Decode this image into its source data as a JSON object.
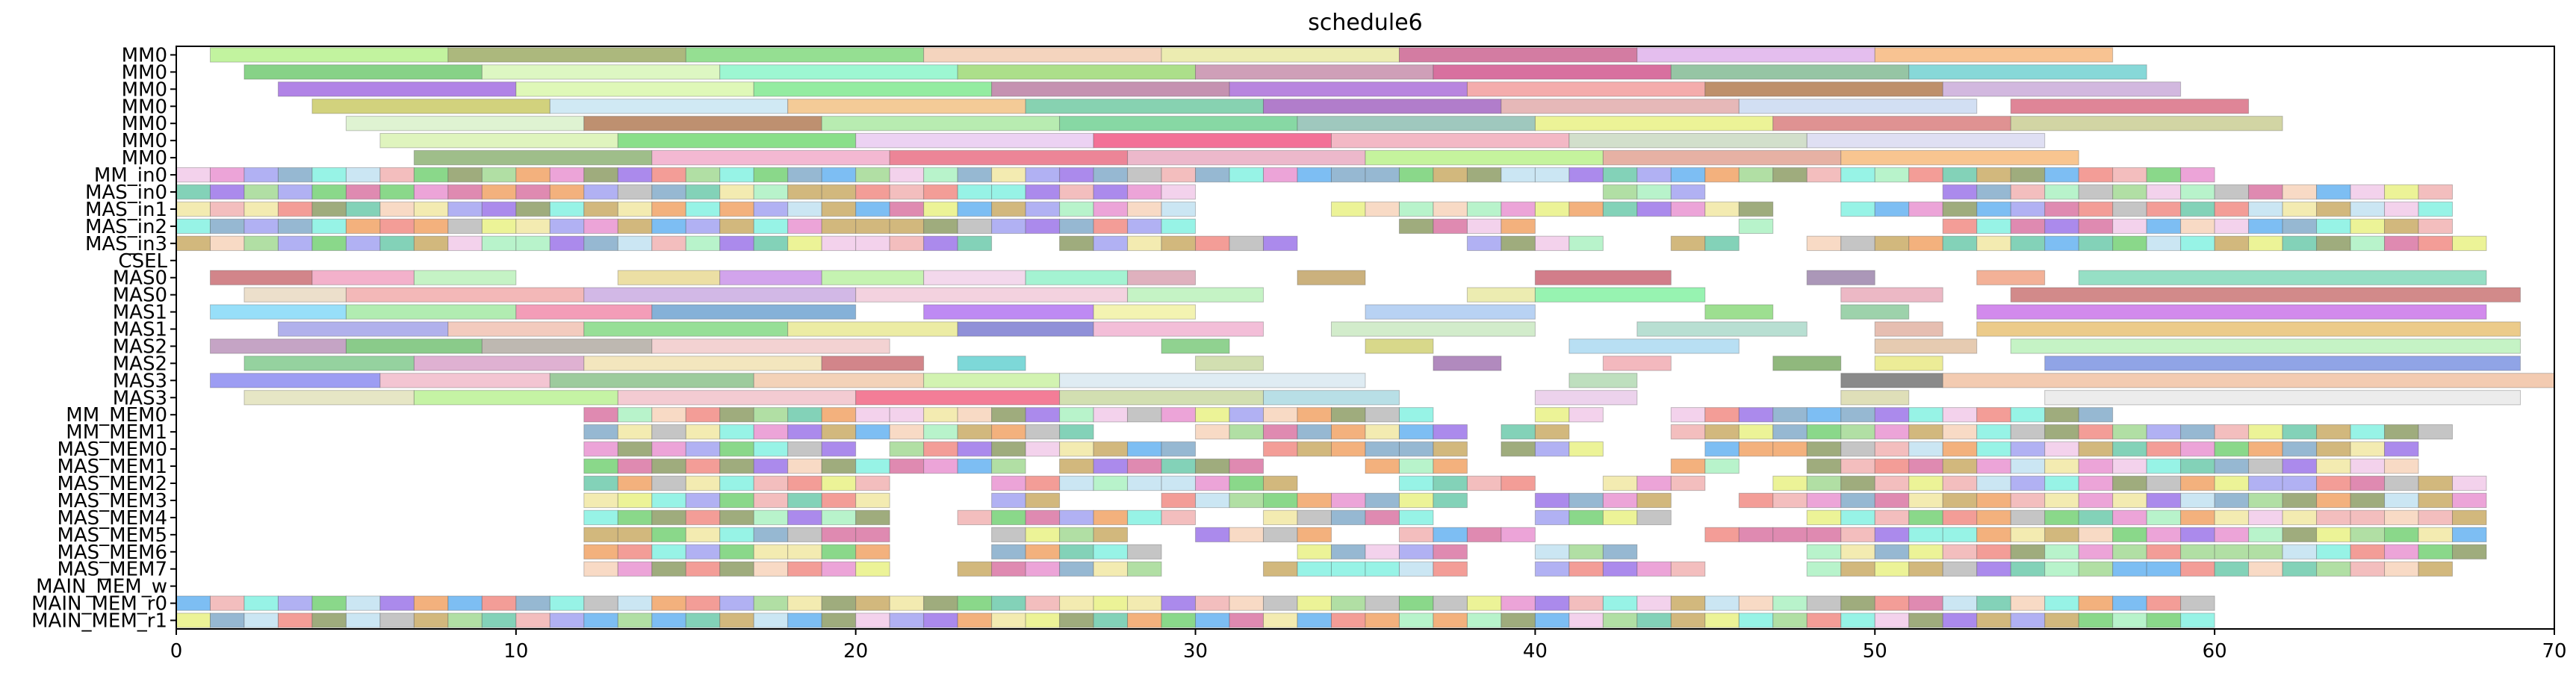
{
  "chart_data": {
    "type": "gantt",
    "title": "schedule6",
    "xlabel": "",
    "ylabel": "",
    "xlim": [
      0,
      70
    ],
    "x_ticks": [
      0,
      10,
      20,
      30,
      40,
      50,
      60,
      70
    ],
    "grid": false,
    "legend": "none",
    "rows": [
      "MM0",
      "MM0",
      "MM0",
      "MM0",
      "MM0",
      "MM0",
      "MM0",
      "MM_in0",
      "MAS_in0",
      "MAS_in1",
      "MAS_in2",
      "MAS_in3",
      "CSEL",
      "MAS0",
      "MAS0",
      "MAS1",
      "MAS1",
      "MAS2",
      "MAS2",
      "MAS3",
      "MAS3",
      "MM_MEM0",
      "MM_MEM1",
      "MAS_MEM0",
      "MAS_MEM1",
      "MAS_MEM2",
      "MAS_MEM3",
      "MAS_MEM4",
      "MAS_MEM5",
      "MAS_MEM6",
      "MAS_MEM7",
      "MAIN_MEM_w",
      "MAIN_MEM_r0",
      "MAIN_MEM_r1"
    ],
    "tasks": [
      {
        "row": 0,
        "start": 1,
        "end": 8,
        "color": "#b5f08a"
      },
      {
        "row": 0,
        "start": 8,
        "end": 15,
        "color": "#9aa860"
      },
      {
        "row": 0,
        "start": 15,
        "end": 22,
        "color": "#7ed87a"
      },
      {
        "row": 0,
        "start": 22,
        "end": 29,
        "color": "#f2cbb0"
      },
      {
        "row": 0,
        "start": 29,
        "end": 36,
        "color": "#e8e8a0"
      },
      {
        "row": 0,
        "start": 36,
        "end": 43,
        "color": "#c95f8e"
      },
      {
        "row": 0,
        "start": 43,
        "end": 50,
        "color": "#deb0ea"
      },
      {
        "row": 0,
        "start": 50,
        "end": 57,
        "color": "#f7b67a"
      },
      {
        "row": 1,
        "start": 2,
        "end": 9,
        "color": "#6cc86c"
      },
      {
        "row": 1,
        "start": 9,
        "end": 16,
        "color": "#d6f5b5"
      },
      {
        "row": 1,
        "start": 16,
        "end": 23,
        "color": "#88f5c8"
      },
      {
        "row": 1,
        "start": 23,
        "end": 30,
        "color": "#9ad870"
      },
      {
        "row": 1,
        "start": 30,
        "end": 37,
        "color": "#c48aa8"
      },
      {
        "row": 1,
        "start": 37,
        "end": 44,
        "color": "#d0508a"
      },
      {
        "row": 1,
        "start": 44,
        "end": 51,
        "color": "#7fb890"
      },
      {
        "row": 1,
        "start": 51,
        "end": 58,
        "color": "#6ccfd0"
      },
      {
        "row": 2,
        "start": 3,
        "end": 10,
        "color": "#a068e0"
      },
      {
        "row": 2,
        "start": 10,
        "end": 17,
        "color": "#d8f7a8"
      },
      {
        "row": 2,
        "start": 17,
        "end": 24,
        "color": "#7de88c"
      },
      {
        "row": 2,
        "start": 24,
        "end": 31,
        "color": "#b87aa0"
      },
      {
        "row": 2,
        "start": 31,
        "end": 38,
        "color": "#a86ad8"
      },
      {
        "row": 2,
        "start": 38,
        "end": 45,
        "color": "#f29a9a"
      },
      {
        "row": 2,
        "start": 45,
        "end": 52,
        "color": "#b0784a"
      },
      {
        "row": 2,
        "start": 52,
        "end": 59,
        "color": "#c8a8d8"
      },
      {
        "row": 3,
        "start": 4,
        "end": 11,
        "color": "#c8c860"
      },
      {
        "row": 3,
        "start": 11,
        "end": 18,
        "color": "#c6e4f2"
      },
      {
        "row": 3,
        "start": 18,
        "end": 25,
        "color": "#f2c080"
      },
      {
        "row": 3,
        "start": 25,
        "end": 32,
        "color": "#6cc8a0"
      },
      {
        "row": 3,
        "start": 32,
        "end": 39,
        "color": "#a060c0"
      },
      {
        "row": 3,
        "start": 39,
        "end": 46,
        "color": "#e0a8a8"
      },
      {
        "row": 3,
        "start": 46,
        "end": 53,
        "color": "#c8d8f0"
      },
      {
        "row": 3,
        "start": 54,
        "end": 61,
        "color": "#d86a80"
      },
      {
        "row": 4,
        "start": 5,
        "end": 12,
        "color": "#d8f0c8"
      },
      {
        "row": 4,
        "start": 12,
        "end": 19,
        "color": "#b07850"
      },
      {
        "row": 4,
        "start": 19,
        "end": 26,
        "color": "#a8e8a0"
      },
      {
        "row": 4,
        "start": 26,
        "end": 33,
        "color": "#6cd090"
      },
      {
        "row": 4,
        "start": 33,
        "end": 40,
        "color": "#8abcb0"
      },
      {
        "row": 4,
        "start": 40,
        "end": 47,
        "color": "#e8f080"
      },
      {
        "row": 4,
        "start": 47,
        "end": 54,
        "color": "#d87a7a"
      },
      {
        "row": 4,
        "start": 54,
        "end": 62,
        "color": "#c8cc90"
      },
      {
        "row": 5,
        "start": 6,
        "end": 13,
        "color": "#d8f2b0"
      },
      {
        "row": 5,
        "start": 13,
        "end": 20,
        "color": "#70d870"
      },
      {
        "row": 5,
        "start": 20,
        "end": 27,
        "color": "#e8c8f0"
      },
      {
        "row": 5,
        "start": 27,
        "end": 34,
        "color": "#f05080"
      },
      {
        "row": 5,
        "start": 34,
        "end": 41,
        "color": "#f0a8b8"
      },
      {
        "row": 5,
        "start": 41,
        "end": 48,
        "color": "#c8d8c0"
      },
      {
        "row": 5,
        "start": 48,
        "end": 55,
        "color": "#d8d8f0"
      },
      {
        "row": 6,
        "start": 7,
        "end": 14,
        "color": "#8ab070"
      },
      {
        "row": 6,
        "start": 14,
        "end": 21,
        "color": "#f0a8c8"
      },
      {
        "row": 6,
        "start": 21,
        "end": 28,
        "color": "#e86a80"
      },
      {
        "row": 6,
        "start": 28,
        "end": 35,
        "color": "#e8a8c0"
      },
      {
        "row": 6,
        "start": 35,
        "end": 42,
        "color": "#b8f088"
      },
      {
        "row": 6,
        "start": 42,
        "end": 49,
        "color": "#e0a090"
      },
      {
        "row": 6,
        "start": 49,
        "end": 56,
        "color": "#f7b878"
      },
      {
        "row": 7,
        "start": 0,
        "end": 60,
        "stripe": true
      },
      {
        "row": 8,
        "start": 0,
        "end": 67,
        "stripe": true,
        "gaps": [
          [
            30,
            42
          ],
          [
            45,
            52
          ]
        ]
      },
      {
        "row": 9,
        "start": 0,
        "end": 67,
        "stripe": true,
        "gaps": [
          [
            30,
            34
          ],
          [
            47,
            49
          ]
        ]
      },
      {
        "row": 10,
        "start": 0,
        "end": 67,
        "stripe": true,
        "gaps": [
          [
            30,
            36
          ],
          [
            40,
            46
          ],
          [
            47,
            52
          ]
        ]
      },
      {
        "row": 11,
        "start": 0,
        "end": 68,
        "stripe": true,
        "gaps": [
          [
            24,
            26
          ],
          [
            33,
            38
          ],
          [
            42,
            44
          ],
          [
            46,
            48
          ]
        ]
      },
      {
        "row": 13,
        "start": 1,
        "end": 4,
        "color": "#c86a70"
      },
      {
        "row": 13,
        "start": 4,
        "end": 7,
        "color": "#f0a0c0"
      },
      {
        "row": 13,
        "start": 7,
        "end": 10,
        "color": "#b8f0b8"
      },
      {
        "row": 13,
        "start": 13,
        "end": 16,
        "color": "#e8d890"
      },
      {
        "row": 13,
        "start": 16,
        "end": 19,
        "color": "#c890e8"
      },
      {
        "row": 13,
        "start": 19,
        "end": 22,
        "color": "#b8f0a0"
      },
      {
        "row": 13,
        "start": 22,
        "end": 25,
        "color": "#f0d0e8"
      },
      {
        "row": 13,
        "start": 25,
        "end": 28,
        "color": "#90f0c8"
      },
      {
        "row": 13,
        "start": 28,
        "end": 30,
        "color": "#d8a0b0"
      },
      {
        "row": 13,
        "start": 33,
        "end": 35,
        "color": "#c0a060"
      },
      {
        "row": 13,
        "start": 40,
        "end": 44,
        "color": "#c86070"
      },
      {
        "row": 13,
        "start": 48,
        "end": 50,
        "color": "#9880a8"
      },
      {
        "row": 13,
        "start": 53,
        "end": 55,
        "color": "#f0a080"
      },
      {
        "row": 13,
        "start": 56,
        "end": 68,
        "color": "#7fd8b8"
      },
      {
        "row": 14,
        "start": 2,
        "end": 5,
        "color": "#e8d8c0"
      },
      {
        "row": 14,
        "start": 5,
        "end": 12,
        "color": "#f0a8a8"
      },
      {
        "row": 14,
        "start": 12,
        "end": 20,
        "color": "#c8a8e0"
      },
      {
        "row": 14,
        "start": 20,
        "end": 28,
        "color": "#f0c8d8"
      },
      {
        "row": 14,
        "start": 28,
        "end": 32,
        "color": "#b8f0b8"
      },
      {
        "row": 14,
        "start": 38,
        "end": 40,
        "color": "#e8e8a0"
      },
      {
        "row": 14,
        "start": 40,
        "end": 45,
        "color": "#80f0a0"
      },
      {
        "row": 14,
        "start": 49,
        "end": 52,
        "color": "#e8a8b8"
      },
      {
        "row": 14,
        "start": 54,
        "end": 69,
        "color": "#c87070"
      },
      {
        "row": 15,
        "start": 1,
        "end": 5,
        "color": "#80d8f8"
      },
      {
        "row": 15,
        "start": 5,
        "end": 10,
        "color": "#a0e8a0"
      },
      {
        "row": 15,
        "start": 10,
        "end": 14,
        "color": "#f088a8"
      },
      {
        "row": 15,
        "start": 14,
        "end": 20,
        "color": "#6aa0d0"
      },
      {
        "row": 15,
        "start": 22,
        "end": 27,
        "color": "#b070f0"
      },
      {
        "row": 15,
        "start": 27,
        "end": 30,
        "color": "#f0f0a0"
      },
      {
        "row": 15,
        "start": 35,
        "end": 40,
        "color": "#a8c8f0"
      },
      {
        "row": 15,
        "start": 45,
        "end": 47,
        "color": "#88d878"
      },
      {
        "row": 15,
        "start": 49,
        "end": 51,
        "color": "#88c898"
      },
      {
        "row": 15,
        "start": 53,
        "end": 68,
        "color": "#c870e8"
      },
      {
        "row": 16,
        "start": 3,
        "end": 8,
        "color": "#a0a0e8"
      },
      {
        "row": 16,
        "start": 8,
        "end": 12,
        "color": "#f0c0b0"
      },
      {
        "row": 16,
        "start": 12,
        "end": 18,
        "color": "#80d880"
      },
      {
        "row": 16,
        "start": 18,
        "end": 23,
        "color": "#e8e890"
      },
      {
        "row": 16,
        "start": 23,
        "end": 27,
        "color": "#7878d0"
      },
      {
        "row": 16,
        "start": 27,
        "end": 32,
        "color": "#f0b0d0"
      },
      {
        "row": 16,
        "start": 34,
        "end": 40,
        "color": "#c8e8c0"
      },
      {
        "row": 16,
        "start": 43,
        "end": 48,
        "color": "#a8d8c8"
      },
      {
        "row": 16,
        "start": 50,
        "end": 52,
        "color": "#e0b0a0"
      },
      {
        "row": 16,
        "start": 53,
        "end": 69,
        "color": "#e8c070"
      },
      {
        "row": 17,
        "start": 1,
        "end": 5,
        "color": "#b890b8"
      },
      {
        "row": 17,
        "start": 5,
        "end": 9,
        "color": "#70c070"
      },
      {
        "row": 17,
        "start": 9,
        "end": 14,
        "color": "#b0a8a0"
      },
      {
        "row": 17,
        "start": 14,
        "end": 21,
        "color": "#f0c8c8"
      },
      {
        "row": 17,
        "start": 29,
        "end": 31,
        "color": "#78c878"
      },
      {
        "row": 17,
        "start": 35,
        "end": 37,
        "color": "#d0d070"
      },
      {
        "row": 17,
        "start": 41,
        "end": 46,
        "color": "#a8d8f0"
      },
      {
        "row": 17,
        "start": 50,
        "end": 53,
        "color": "#e0c0a0"
      },
      {
        "row": 17,
        "start": 54,
        "end": 69,
        "color": "#b8f0b8"
      },
      {
        "row": 18,
        "start": 2,
        "end": 7,
        "color": "#7ec88a"
      },
      {
        "row": 18,
        "start": 7,
        "end": 12,
        "color": "#d8a0c8"
      },
      {
        "row": 18,
        "start": 12,
        "end": 19,
        "color": "#f0e0b0"
      },
      {
        "row": 18,
        "start": 19,
        "end": 22,
        "color": "#c86a70"
      },
      {
        "row": 18,
        "start": 23,
        "end": 25,
        "color": "#60d0d0"
      },
      {
        "row": 18,
        "start": 30,
        "end": 32,
        "color": "#c8d8a0"
      },
      {
        "row": 18,
        "start": 37,
        "end": 39,
        "color": "#a070b0"
      },
      {
        "row": 18,
        "start": 42,
        "end": 44,
        "color": "#f0a8b0"
      },
      {
        "row": 18,
        "start": 47,
        "end": 49,
        "color": "#78a860"
      },
      {
        "row": 18,
        "start": 50,
        "end": 52,
        "color": "#e8e880"
      },
      {
        "row": 18,
        "start": 55,
        "end": 69,
        "color": "#7890e0"
      },
      {
        "row": 19,
        "start": 1,
        "end": 6,
        "color": "#8888f0"
      },
      {
        "row": 19,
        "start": 6,
        "end": 11,
        "color": "#f0b8c8"
      },
      {
        "row": 19,
        "start": 11,
        "end": 17,
        "color": "#88c088"
      },
      {
        "row": 19,
        "start": 17,
        "end": 22,
        "color": "#f0c8a8"
      },
      {
        "row": 19,
        "start": 22,
        "end": 26,
        "color": "#c8f0a0"
      },
      {
        "row": 19,
        "start": 26,
        "end": 35,
        "color": "#d8e8f0"
      },
      {
        "row": 19,
        "start": 41,
        "end": 43,
        "color": "#b0d8b0"
      },
      {
        "row": 19,
        "start": 49,
        "end": 52,
        "color": "#707070"
      },
      {
        "row": 19,
        "start": 52,
        "end": 70,
        "color": "#f0c0a0"
      },
      {
        "row": 20,
        "start": 2,
        "end": 7,
        "color": "#e0e0b8"
      },
      {
        "row": 20,
        "start": 7,
        "end": 13,
        "color": "#b8f090"
      },
      {
        "row": 20,
        "start": 13,
        "end": 20,
        "color": "#f0c0c8"
      },
      {
        "row": 20,
        "start": 20,
        "end": 26,
        "color": "#f06080"
      },
      {
        "row": 20,
        "start": 26,
        "end": 32,
        "color": "#c8d8a0"
      },
      {
        "row": 20,
        "start": 32,
        "end": 36,
        "color": "#a8d8e0"
      },
      {
        "row": 20,
        "start": 40,
        "end": 43,
        "color": "#e8c8e8"
      },
      {
        "row": 20,
        "start": 49,
        "end": 51,
        "color": "#d8d8a8"
      },
      {
        "row": 20,
        "start": 55,
        "end": 69,
        "color": "#e8e8e8"
      },
      {
        "row": 21,
        "start": 12,
        "end": 57,
        "stripe": true,
        "gaps": [
          [
            37,
            40
          ],
          [
            42,
            44
          ]
        ]
      },
      {
        "row": 22,
        "start": 12,
        "end": 67,
        "stripe": true,
        "gaps": [
          [
            27,
            30
          ],
          [
            38,
            39
          ],
          [
            41,
            44
          ]
        ]
      },
      {
        "row": 23,
        "start": 12,
        "end": 66,
        "stripe": true,
        "gaps": [
          [
            20,
            21
          ],
          [
            30,
            32
          ],
          [
            38,
            39
          ],
          [
            42,
            45
          ]
        ]
      },
      {
        "row": 24,
        "start": 12,
        "end": 66,
        "stripe": true,
        "gaps": [
          [
            25,
            26
          ],
          [
            32,
            35
          ],
          [
            38,
            44
          ],
          [
            46,
            48
          ]
        ]
      },
      {
        "row": 25,
        "start": 12,
        "end": 68,
        "stripe": true,
        "gaps": [
          [
            21,
            24
          ],
          [
            33,
            36
          ],
          [
            40,
            42
          ],
          [
            45,
            47
          ]
        ]
      },
      {
        "row": 26,
        "start": 12,
        "end": 68,
        "stripe": true,
        "gaps": [
          [
            21,
            24
          ],
          [
            26,
            29
          ],
          [
            38,
            40
          ],
          [
            44,
            46
          ]
        ]
      },
      {
        "row": 27,
        "start": 12,
        "end": 68,
        "stripe": true,
        "gaps": [
          [
            21,
            23
          ],
          [
            30,
            32
          ],
          [
            37,
            40
          ],
          [
            44,
            48
          ]
        ]
      },
      {
        "row": 28,
        "start": 12,
        "end": 68,
        "stripe": true,
        "gaps": [
          [
            21,
            24
          ],
          [
            28,
            30
          ],
          [
            34,
            36
          ],
          [
            40,
            45
          ]
        ]
      },
      {
        "row": 29,
        "start": 12,
        "end": 68,
        "stripe": true,
        "gaps": [
          [
            21,
            24
          ],
          [
            29,
            33
          ],
          [
            38,
            40
          ],
          [
            43,
            48
          ]
        ]
      },
      {
        "row": 30,
        "start": 12,
        "end": 67,
        "stripe": true,
        "gaps": [
          [
            21,
            23
          ],
          [
            29,
            32
          ],
          [
            38,
            40
          ],
          [
            45,
            48
          ]
        ]
      },
      {
        "row": 32,
        "start": 0,
        "end": 60,
        "stripe": true
      },
      {
        "row": 33,
        "start": 0,
        "end": 60,
        "stripe": true
      }
    ]
  }
}
